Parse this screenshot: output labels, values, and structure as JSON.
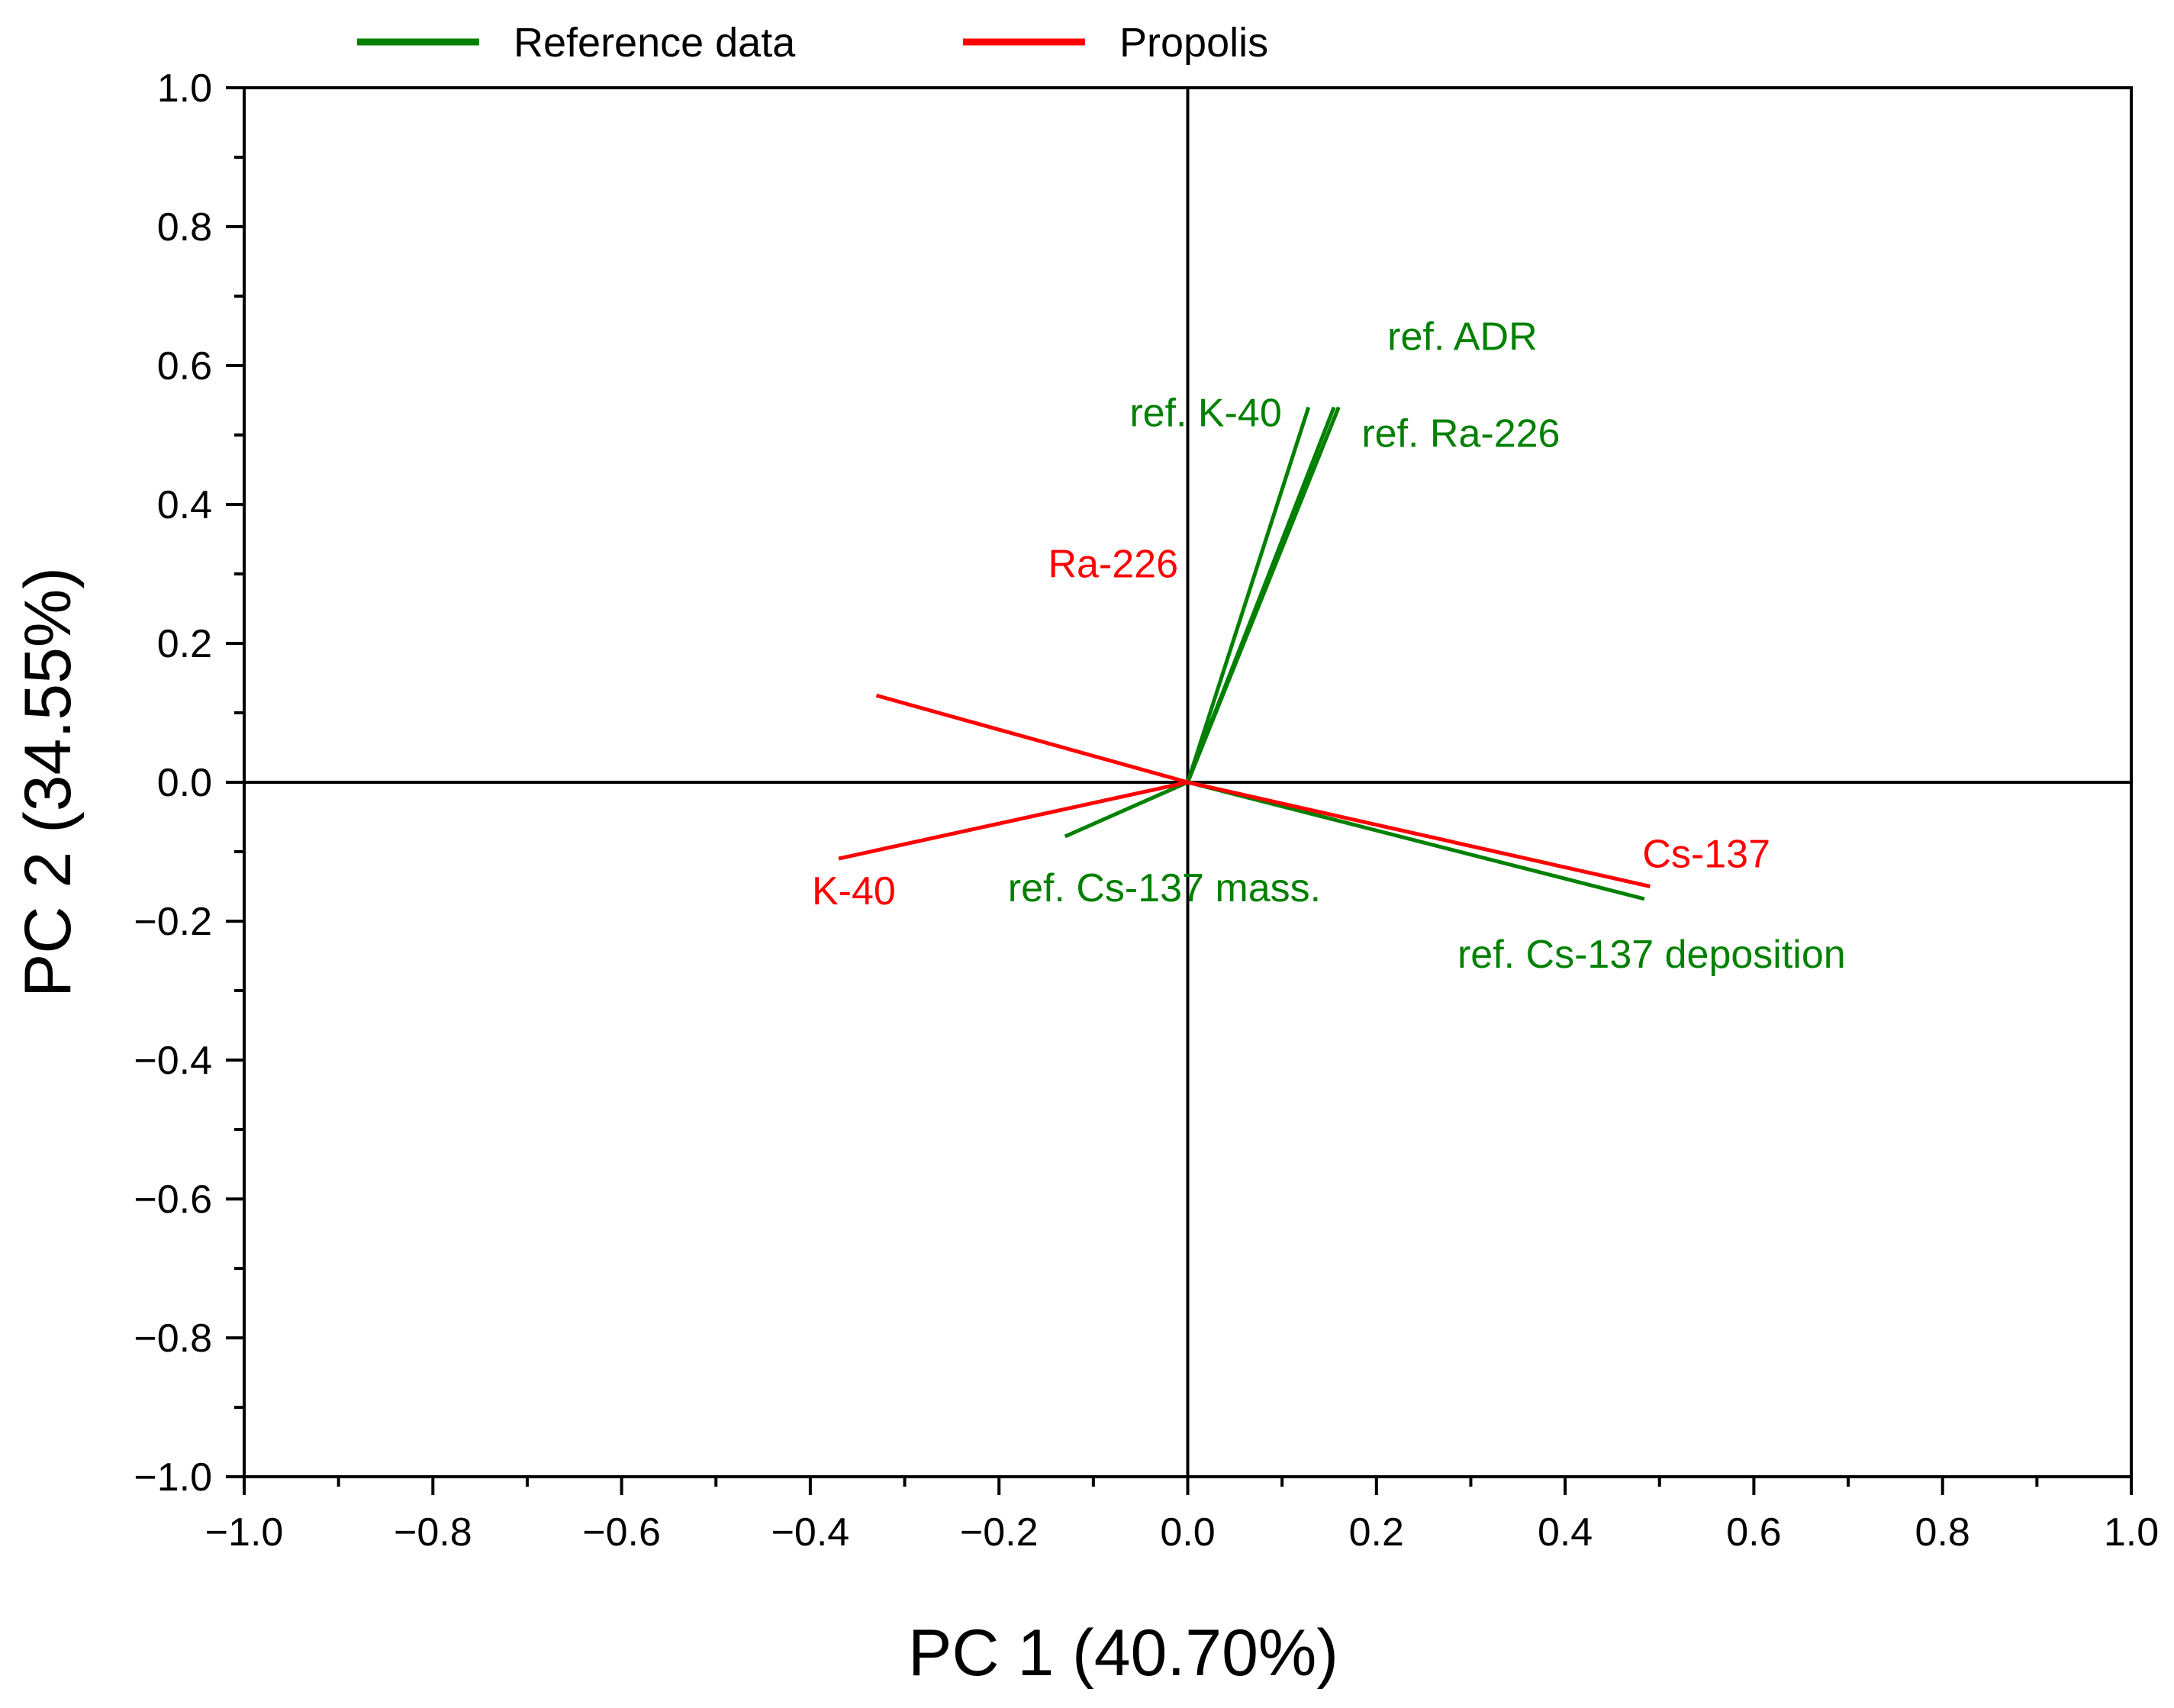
{
  "chart_data": {
    "type": "biplot",
    "title": "",
    "xlabel": "PC 1 (40.70%)",
    "ylabel": "PC 2 (34.55%)",
    "xlim": [
      -1.0,
      1.0
    ],
    "ylim": [
      -1.0,
      1.0
    ],
    "x_ticks": [
      "−1.0",
      "−0.8",
      "−0.6",
      "−0.4",
      "−0.2",
      "0.0",
      "0.2",
      "0.4",
      "0.6",
      "0.8",
      "1.0"
    ],
    "y_ticks": [
      "1.0",
      "0.8",
      "0.6",
      "0.4",
      "0.2",
      "0.0",
      "−0.2",
      "−0.4",
      "−0.6",
      "−0.8",
      "−1.0"
    ],
    "legend_position": "top",
    "legend": [
      {
        "name": "Reference data",
        "color": "#008000"
      },
      {
        "name": "Propolis",
        "color": "#ff0000"
      }
    ],
    "series": [
      {
        "name": "Reference data",
        "color": "#008000",
        "vectors": [
          {
            "label": "ref.  ADR",
            "x": 0.155,
            "y": 0.54
          },
          {
            "label": "ref. K-40",
            "x": 0.128,
            "y": 0.54
          },
          {
            "label": "ref. Ra-226",
            "x": 0.16,
            "y": 0.54
          },
          {
            "label": "ref. Cs-137 mass.",
            "x": -0.13,
            "y": -0.078
          },
          {
            "label": "ref. Cs-137 deposition",
            "x": 0.484,
            "y": -0.168
          }
        ]
      },
      {
        "name": "Propolis",
        "color": "#ff0000",
        "vectors": [
          {
            "label": "Ra-226",
            "x": -0.33,
            "y": 0.125
          },
          {
            "label": "K-40",
            "x": -0.37,
            "y": -0.11
          },
          {
            "label": "Cs-137",
            "x": 0.49,
            "y": -0.15
          }
        ]
      }
    ]
  }
}
